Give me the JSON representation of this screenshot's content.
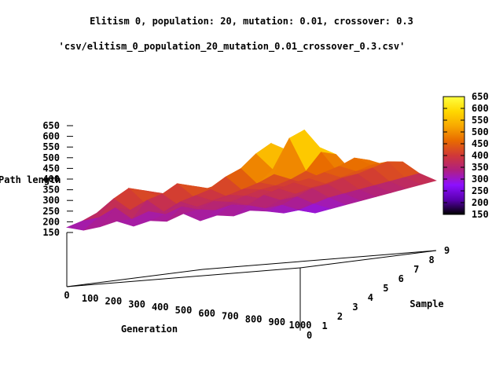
{
  "chart_data": {
    "type": "surface",
    "title": "Elitism 0, population: 20, mutation: 0.01, crossover: 0.3",
    "series_name": "'csv/elitism_0_population_20_mutation_0.01_crossover_0.3.csv'",
    "xlabel": "Generation",
    "ylabel": "Sample",
    "zlabel": "Path length",
    "x_ticks": [
      "0",
      "100",
      "200",
      "300",
      "400",
      "500",
      "600",
      "700",
      "800",
      "900",
      "1000"
    ],
    "y_ticks": [
      "0",
      "1",
      "2",
      "3",
      "4",
      "5",
      "6",
      "7",
      "8",
      "9"
    ],
    "z_ticks": [
      "150",
      "200",
      "250",
      "300",
      "350",
      "400",
      "450",
      "500",
      "550",
      "600",
      "650"
    ],
    "colorbar_ticks": [
      "150",
      "200",
      "250",
      "300",
      "350",
      "400",
      "450",
      "500",
      "550",
      "600",
      "650"
    ],
    "xlim": [
      0,
      1000
    ],
    "ylim": [
      0,
      9
    ],
    "zlim": [
      150,
      650
    ],
    "colorbar_colors": [
      "#000000",
      "#5a00b0",
      "#8c10ff",
      "#b02080",
      "#d03838",
      "#e86a00",
      "#f8a800",
      "#ffd800",
      "#ffff40"
    ],
    "surface_rows": [
      [
        310,
        290,
        300,
        320,
        290,
        310,
        300,
        330,
        290,
        310,
        300,
        320,
        310,
        295,
        305
      ],
      [
        330,
        340,
        380,
        320,
        350,
        330,
        360,
        340,
        330,
        350,
        340,
        320,
        330,
        300,
        280
      ],
      [
        360,
        420,
        360,
        400,
        340,
        380,
        350,
        370,
        360,
        340,
        380,
        350,
        360,
        320,
        290
      ],
      [
        400,
        460,
        380,
        420,
        360,
        400,
        370,
        390,
        380,
        360,
        400,
        370,
        390,
        340,
        300
      ],
      [
        380,
        440,
        400,
        460,
        390,
        420,
        380,
        410,
        400,
        380,
        420,
        390,
        400,
        350,
        310
      ],
      [
        370,
        420,
        390,
        440,
        420,
        470,
        400,
        430,
        410,
        390,
        430,
        400,
        420,
        360,
        320
      ],
      [
        360,
        400,
        380,
        420,
        440,
        500,
        420,
        460,
        430,
        400,
        450,
        420,
        430,
        370,
        330
      ],
      [
        350,
        380,
        370,
        400,
        430,
        560,
        480,
        620,
        460,
        420,
        470,
        440,
        450,
        380,
        340
      ],
      [
        340,
        370,
        360,
        390,
        410,
        600,
        560,
        650,
        540,
        440,
        500,
        460,
        470,
        390,
        350
      ],
      [
        330,
        360,
        350,
        380,
        400,
        520,
        500,
        560,
        520,
        430,
        480,
        450,
        460,
        400,
        360
      ]
    ]
  }
}
